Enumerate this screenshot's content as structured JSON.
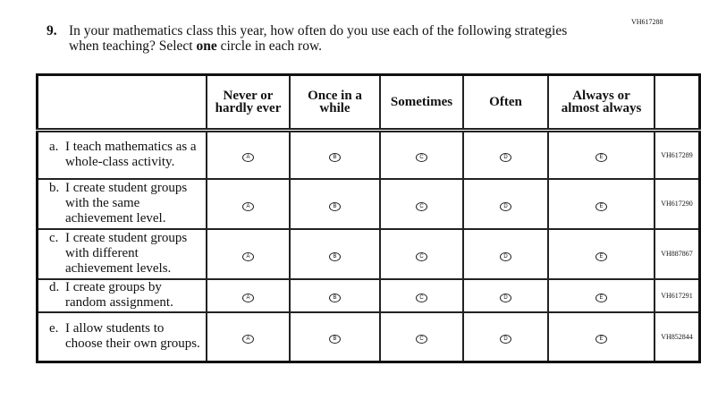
{
  "top_code": "VH617288",
  "question": {
    "number": "9.",
    "text_pre": "In your mathematics class this year, how often do you use each of the following strategies when teaching? Select ",
    "text_bold": "one",
    "text_post": " circle in each row."
  },
  "columns": [
    "Never or hardly ever",
    "Once in a while",
    "Sometimes",
    "Often",
    "Always or almost always"
  ],
  "bubble_letters": [
    "A",
    "B",
    "C",
    "D",
    "E"
  ],
  "rows": [
    {
      "letter": "a.",
      "text": "I teach mathematics as a whole-class activity.",
      "code": "VH617289"
    },
    {
      "letter": "b.",
      "text": "I create student groups with the same achievement level.",
      "code": "VH617290"
    },
    {
      "letter": "c.",
      "text": "I create student groups with different achievement levels.",
      "code": "VH887867"
    },
    {
      "letter": "d.",
      "text": "I create groups by random assignment.",
      "code": "VH617291"
    },
    {
      "letter": "e.",
      "text": "I allow students to choose their own groups.",
      "code": "VH852844"
    }
  ]
}
